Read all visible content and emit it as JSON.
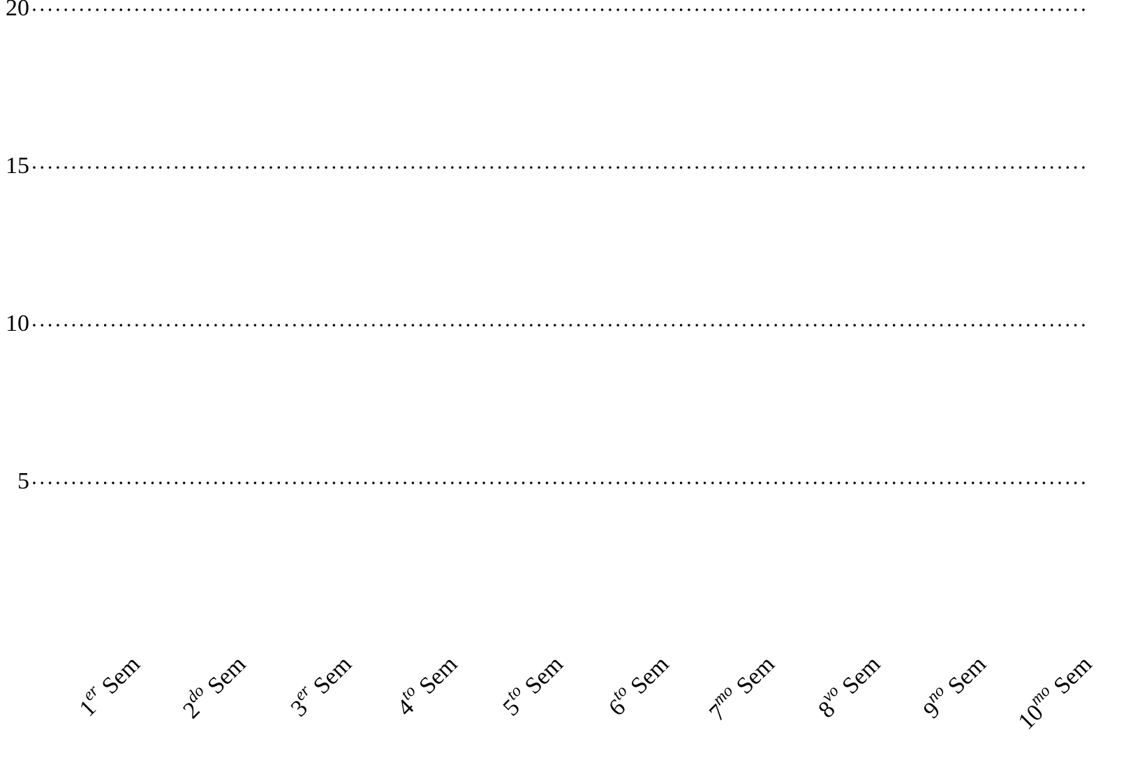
{
  "chart_data": {
    "type": "bar",
    "categories": [
      "1er Sem",
      "2do Sem",
      "3er Sem",
      "4to Sem",
      "5to Sem",
      "6to Sem",
      "7mo Sem",
      "8vo Sem",
      "9no Sem",
      "10mo Sem"
    ],
    "ylim": [
      0,
      20
    ],
    "yticks": [
      5,
      10,
      15,
      20
    ],
    "grid": true,
    "grid_style": "dotted"
  }
}
